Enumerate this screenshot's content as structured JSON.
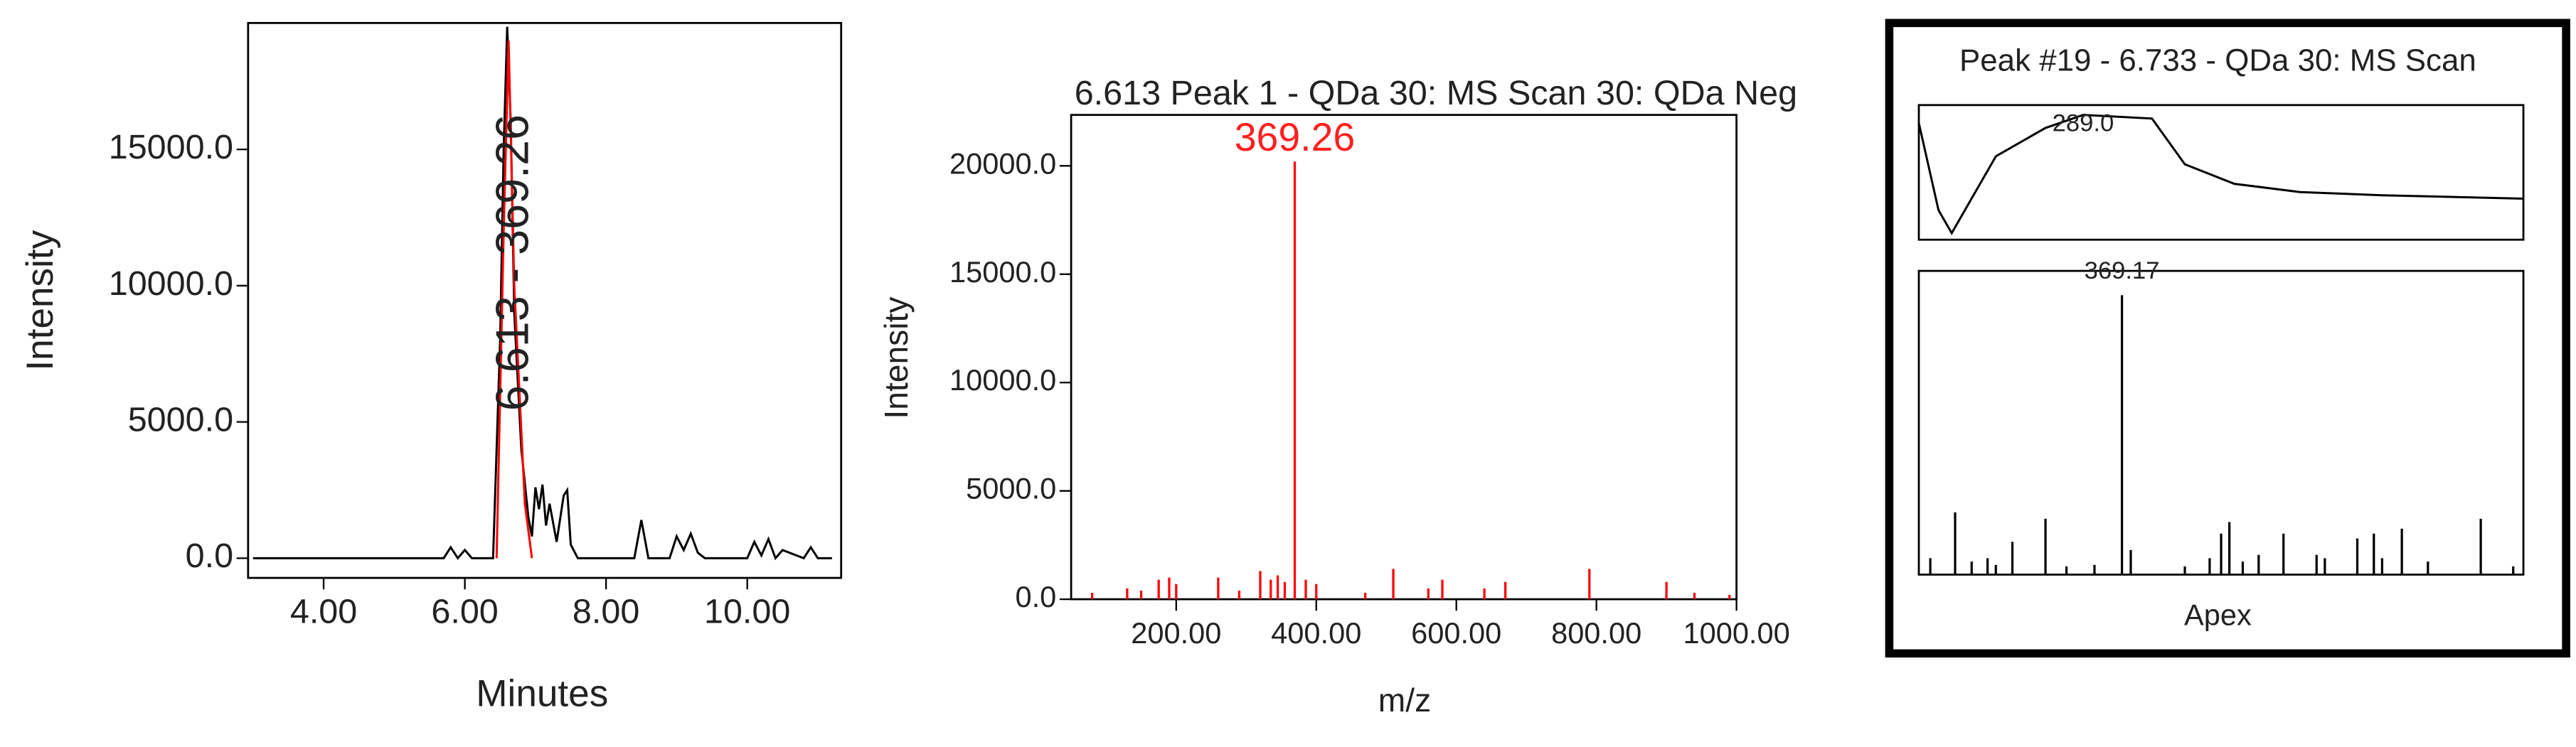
{
  "chart_data": [
    {
      "type": "line",
      "xlabel": "Minutes",
      "ylabel": "Intensity",
      "annotation": "6.613 - 369.26",
      "xlim": [
        2.93,
        11.33
      ],
      "ylim": [
        -723,
        19640
      ],
      "xticks": [
        {
          "value": 4,
          "label": "4.00"
        },
        {
          "value": 6,
          "label": "6.00"
        },
        {
          "value": 8,
          "label": "8.00"
        },
        {
          "value": 10,
          "label": "10.00"
        }
      ],
      "yticks": [
        {
          "value": 0,
          "label": "0.0"
        },
        {
          "value": 5000,
          "label": "5000.0"
        },
        {
          "value": 10000,
          "label": "10000.0"
        },
        {
          "value": 15000,
          "label": "15000.0"
        }
      ],
      "series": [
        {
          "color": "#000000",
          "x": [
            3.0,
            5.7,
            5.8,
            5.9,
            6.0,
            6.1,
            6.4,
            6.5,
            6.55,
            6.6,
            6.65,
            6.7,
            6.8,
            6.9,
            6.95,
            7.0,
            7.05,
            7.1,
            7.15,
            7.2,
            7.3,
            7.4,
            7.45,
            7.5,
            7.6,
            8.4,
            8.5,
            8.6,
            8.9,
            9.0,
            9.1,
            9.2,
            9.3,
            9.4,
            10.0,
            10.1,
            10.2,
            10.3,
            10.4,
            10.5,
            10.8,
            10.9,
            11.0,
            11.2
          ],
          "values": [
            0,
            0,
            400,
            0,
            300,
            0,
            0,
            8000,
            15000,
            19500,
            16000,
            9000,
            4000,
            1500,
            800,
            2600,
            1800,
            2700,
            1200,
            2000,
            600,
            2300,
            2500,
            500,
            0,
            0,
            1400,
            0,
            0,
            800,
            300,
            900,
            200,
            0,
            0,
            600,
            100,
            700,
            0,
            300,
            0,
            400,
            0,
            0
          ]
        },
        {
          "color": "#ff0000",
          "x": [
            6.45,
            6.55,
            6.62,
            6.7,
            6.85,
            6.95
          ],
          "values": [
            0,
            12000,
            19000,
            10000,
            2000,
            0
          ]
        }
      ]
    },
    {
      "type": "bar",
      "title": "6.613 Peak 1 - QDa 30: MS Scan 30: QDa Neg",
      "xlabel": "m/z",
      "ylabel": "Intensity",
      "xlim": [
        50,
        1000
      ],
      "ylim": [
        0,
        22350
      ],
      "xticks": [
        {
          "value": 200,
          "label": "200.00"
        },
        {
          "value": 400,
          "label": "400.00"
        },
        {
          "value": 600,
          "label": "600.00"
        },
        {
          "value": 800,
          "label": "800.00"
        },
        {
          "value": 1000,
          "label": "1000.00"
        }
      ],
      "yticks": [
        {
          "value": 0,
          "label": "0.0"
        },
        {
          "value": 5000,
          "label": "5000.0"
        },
        {
          "value": 10000,
          "label": "10000.0"
        },
        {
          "value": 15000,
          "label": "15000.0"
        },
        {
          "value": 20000,
          "label": "20000.0"
        }
      ],
      "series": [
        {
          "color": "#ff0000",
          "x": [
            80,
            130,
            150,
            175,
            190,
            200,
            260,
            290,
            320,
            335,
            345,
            355,
            369.26,
            385,
            400,
            470,
            510,
            560,
            580,
            640,
            670,
            790,
            900,
            940,
            990
          ],
          "values": [
            300,
            500,
            400,
            900,
            1000,
            700,
            1000,
            400,
            1300,
            900,
            1100,
            800,
            20200,
            900,
            700,
            300,
            1400,
            500,
            900,
            500,
            800,
            1400,
            800,
            300,
            200
          ]
        }
      ]
    },
    {
      "type": "line",
      "title": "Peak #19 - 6.733 - QDa 30: MS Scan",
      "annotation": "289.0",
      "xlim": [
        240,
        400
      ],
      "ylim": [
        0,
        100
      ],
      "series": [
        {
          "color": "#000000",
          "x": [
            240,
            245.2,
            248.7,
            260.4,
            273.5,
            283.5,
            301.7,
            310.4,
            323.5,
            340.9,
            362.6,
            400
          ],
          "values": [
            86.6,
            22,
            4.9,
            62,
            83,
            92.7,
            90,
            56,
            41.5,
            35.4,
            33,
            30.5
          ]
        }
      ]
    },
    {
      "type": "bar",
      "xlabel": "Apex",
      "xlim": [
        50,
        1000
      ],
      "ylim": [
        0,
        100
      ],
      "series": [
        {
          "color": "#000000",
          "x": [
            68,
            107,
            133,
            158,
            171,
            197,
            249,
            282,
            326,
            369.17,
            383,
            468,
            507,
            525,
            538,
            559,
            584,
            623,
            675,
            688,
            739,
            765,
            778,
            809,
            850,
            933,
            984
          ],
          "values": [
            5.4,
            20.5,
            4.3,
            5.4,
            3.2,
            10.8,
            18.4,
            2.7,
            3.2,
            92,
            8.1,
            2.7,
            5.4,
            13.5,
            17.3,
            4.3,
            6.5,
            13.5,
            6.5,
            5.4,
            11.9,
            13.5,
            5.4,
            15.1,
            4.3,
            18.4,
            2.7
          ]
        }
      ]
    }
  ]
}
